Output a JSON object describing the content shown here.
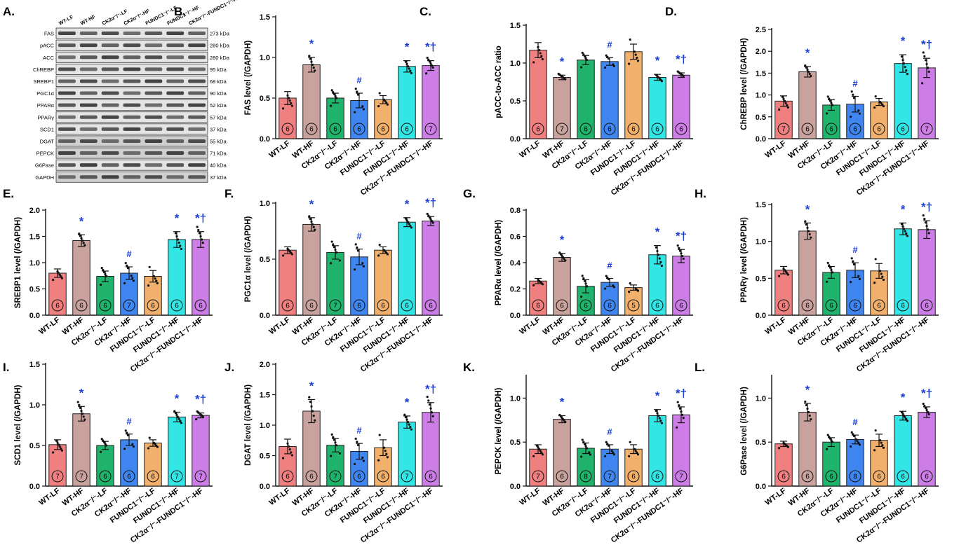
{
  "colors": {
    "groups": [
      "#f08080",
      "#c9a29d",
      "#1fb36b",
      "#3f86f0",
      "#f2b06d",
      "#33e6e6",
      "#cc7de6"
    ],
    "significance": "#1a3ed6"
  },
  "groups": [
    "WT-LF",
    "WT-HF",
    "CK2α⁻/⁻-LF",
    "CK2α⁻/⁻-HF",
    "FUNDC1⁻/⁻-LF",
    "FUNDC1⁻/⁻-HF",
    "CK2α⁻/⁻-FUNDC1⁻/⁻-HF"
  ],
  "blot": {
    "panel_letter": "A.",
    "lanes": [
      "WT-LF",
      "WT-HF",
      "CK2α⁻/⁻-LF",
      "CK2α⁻/⁻-HF",
      "FUNDC1⁻/⁻-LF",
      "FUNDC1⁻/⁻-HF",
      "CK2α⁻/⁻-FUNDC1⁻/⁻-HF"
    ],
    "rows": [
      {
        "protein": "FAS",
        "size": "273 kDa"
      },
      {
        "protein": "pACC",
        "size": "280 kDa"
      },
      {
        "protein": "ACC",
        "size": "280 kDa"
      },
      {
        "protein": "ChREBP",
        "size": "95 kDa"
      },
      {
        "protein": "SREBP1",
        "size": "68 kDa"
      },
      {
        "protein": "PGC1α",
        "size": "90 kDa"
      },
      {
        "protein": "PPARα",
        "size": "52 kDa"
      },
      {
        "protein": "PPARγ",
        "size": "57 kDa"
      },
      {
        "protein": "SCD1",
        "size": "37 kDa"
      },
      {
        "protein": "DGAT",
        "size": "55 kDa"
      },
      {
        "protein": "PEPCK",
        "size": "71 kDa"
      },
      {
        "protein": "G6Pase",
        "size": "40 kDa"
      },
      {
        "protein": "GAPDH",
        "size": "37 kDa"
      }
    ]
  },
  "chart_data": [
    {
      "panel": "B.",
      "type": "bar",
      "ylabel": "FAS level (/GAPDH)",
      "ylim": [
        0,
        1.5
      ],
      "yticks": [
        "0.0",
        "0.5",
        "1.0",
        "1.5"
      ],
      "categories": [
        "WT-LF",
        "WT-HF",
        "CK2α⁻/⁻-LF",
        "CK2α⁻/⁻-HF",
        "FUNDC1⁻/⁻-LF",
        "FUNDC1⁻/⁻-HF",
        "CK2α⁻/⁻-FUNDC1⁻/⁻-HF"
      ],
      "values": [
        0.5,
        0.91,
        0.5,
        0.47,
        0.48,
        0.89,
        0.9
      ],
      "errors": [
        0.08,
        0.09,
        0.06,
        0.09,
        0.05,
        0.07,
        0.06
      ],
      "n": [
        "6",
        "6",
        "6",
        "6",
        "6",
        "6",
        "7"
      ],
      "marks": [
        "",
        "*",
        "",
        "#",
        "",
        "*",
        "*†"
      ]
    },
    {
      "panel": "C.",
      "type": "bar",
      "ylabel": "pACC-to-ACC ratio",
      "ylim": [
        0,
        1.5
      ],
      "yticks": [
        "0.0",
        "0.5",
        "1.0",
        "1.5"
      ],
      "categories": [
        "WT-LF",
        "WT-HF",
        "CK2α⁻/⁻-LF",
        "CK2α⁻/⁻-HF",
        "FUNDC1⁻/⁻-LF",
        "FUNDC1⁻/⁻-HF",
        "CK2α⁻/⁻-FUNDC1⁻/⁻-HF"
      ],
      "values": [
        1.17,
        0.81,
        1.04,
        1.02,
        1.15,
        0.81,
        0.84
      ],
      "errors": [
        0.1,
        0.03,
        0.06,
        0.05,
        0.1,
        0.04,
        0.03
      ],
      "n": [
        "6",
        "7",
        "6",
        "6",
        "6",
        "6",
        "6"
      ],
      "marks": [
        "",
        "*",
        "",
        "#",
        "",
        "*",
        "*†"
      ]
    },
    {
      "panel": "D.",
      "type": "bar",
      "ylabel": "ChREBP level (/GAPDH)",
      "ylim": [
        0,
        2.5
      ],
      "yticks": [
        "0.0",
        "0.5",
        "1.0",
        "1.5",
        "2.0",
        "2.5"
      ],
      "categories": [
        "WT-LF",
        "WT-HF",
        "CK2α⁻/⁻-LF",
        "CK2α⁻/⁻-HF",
        "FUNDC1⁻/⁻-LF",
        "FUNDC1⁻/⁻-HF",
        "CK2α⁻/⁻-FUNDC1⁻/⁻-HF"
      ],
      "values": [
        0.86,
        1.53,
        0.77,
        0.79,
        0.84,
        1.72,
        1.62
      ],
      "errors": [
        0.12,
        0.12,
        0.12,
        0.18,
        0.08,
        0.2,
        0.22
      ],
      "n": [
        "7",
        "6",
        "6",
        "6",
        "6",
        "6",
        "7"
      ],
      "marks": [
        "",
        "*",
        "",
        "#",
        "",
        "*",
        "*†"
      ]
    },
    {
      "panel": "E.",
      "type": "bar",
      "ylabel": "SREBP1 level (/GAPDH)",
      "ylim": [
        0,
        2.0
      ],
      "yticks": [
        "0.0",
        "0.5",
        "1.0",
        "1.5",
        "2.0"
      ],
      "categories": [
        "WT-LF",
        "WT-HF",
        "CK2α⁻/⁻-LF",
        "CK2α⁻/⁻-HF",
        "FUNDC1⁻/⁻-LF",
        "FUNDC1⁻/⁻-HF",
        "CK2α⁻/⁻-FUNDC1⁻/⁻-HF"
      ],
      "values": [
        0.8,
        1.42,
        0.74,
        0.8,
        0.74,
        1.44,
        1.44
      ],
      "errors": [
        0.08,
        0.11,
        0.1,
        0.12,
        0.11,
        0.15,
        0.15
      ],
      "n": [
        "6",
        "6",
        "6",
        "7",
        "6",
        "6",
        "6"
      ],
      "marks": [
        "",
        "*",
        "",
        "#",
        "",
        "*",
        "*†"
      ]
    },
    {
      "panel": "F.",
      "type": "bar",
      "ylabel": "PGC1α level (/GAPDH)",
      "ylim": [
        0,
        1.0
      ],
      "yticks": [
        "0.0",
        "0.5",
        "1.0"
      ],
      "categories": [
        "WT-LF",
        "WT-HF",
        "CK2α⁻/⁻-LF",
        "CK2α⁻/⁻-HF",
        "FUNDC1⁻/⁻-LF",
        "FUNDC1⁻/⁻-HF",
        "CK2α⁻/⁻-FUNDC1⁻/⁻-HF"
      ],
      "values": [
        0.58,
        0.81,
        0.56,
        0.52,
        0.58,
        0.83,
        0.84
      ],
      "errors": [
        0.03,
        0.06,
        0.06,
        0.07,
        0.03,
        0.04,
        0.04
      ],
      "n": [
        "6",
        "6",
        "7",
        "6",
        "6",
        "6",
        "6"
      ],
      "marks": [
        "",
        "*",
        "",
        "#",
        "",
        "*",
        "*†"
      ]
    },
    {
      "panel": "G.",
      "type": "bar",
      "ylabel": "PPARα level (/GAPDH)",
      "ylim": [
        0,
        0.8
      ],
      "yticks": [
        "0.0",
        "0.2",
        "0.4",
        "0.6",
        "0.8"
      ],
      "categories": [
        "WT-LF",
        "WT-HF",
        "CK2α⁻/⁻-LF",
        "CK2α⁻/⁻-HF",
        "FUNDC1⁻/⁻-LF",
        "FUNDC1⁻/⁻-HF",
        "CK2α⁻/⁻-FUNDC1⁻/⁻-HF"
      ],
      "values": [
        0.26,
        0.44,
        0.22,
        0.25,
        0.21,
        0.46,
        0.45
      ],
      "errors": [
        0.02,
        0.03,
        0.05,
        0.03,
        0.02,
        0.07,
        0.05
      ],
      "n": [
        "6",
        "6",
        "6",
        "6",
        "5",
        "6",
        "6"
      ],
      "marks": [
        "",
        "*",
        "",
        "#",
        "",
        "*",
        "*†"
      ]
    },
    {
      "panel": "H.",
      "type": "bar",
      "ylabel": "PPARγ level (/GAPDH)",
      "ylim": [
        0,
        1.5
      ],
      "yticks": [
        "0.0",
        "0.5",
        "1.0",
        "1.5"
      ],
      "categories": [
        "WT-LF",
        "WT-HF",
        "CK2α⁻/⁻-LF",
        "CK2α⁻/⁻-HF",
        "FUNDC1⁻/⁻-LF",
        "FUNDC1⁻/⁻-HF",
        "CK2α⁻/⁻-FUNDC1⁻/⁻-HF"
      ],
      "values": [
        0.61,
        1.14,
        0.58,
        0.61,
        0.6,
        1.17,
        1.16
      ],
      "errors": [
        0.05,
        0.11,
        0.08,
        0.1,
        0.1,
        0.08,
        0.12
      ],
      "n": [
        "6",
        "6",
        "6",
        "6",
        "6",
        "6",
        "6"
      ],
      "marks": [
        "",
        "*",
        "",
        "#",
        "",
        "*",
        "*†"
      ]
    },
    {
      "panel": "I.",
      "type": "bar",
      "ylabel": "SCD1 level (/GAPDH)",
      "ylim": [
        0,
        1.5
      ],
      "yticks": [
        "0.0",
        "0.5",
        "1.0",
        "1.5"
      ],
      "categories": [
        "WT-LF",
        "WT-HF",
        "CK2α⁻/⁻-LF",
        "CK2α⁻/⁻-HF",
        "FUNDC1⁻/⁻-LF",
        "FUNDC1⁻/⁻-HF",
        "CK2α⁻/⁻-FUNDC1⁻/⁻-HF"
      ],
      "values": [
        0.51,
        0.89,
        0.5,
        0.57,
        0.53,
        0.85,
        0.87
      ],
      "errors": [
        0.06,
        0.09,
        0.05,
        0.07,
        0.04,
        0.06,
        0.03
      ],
      "n": [
        "7",
        "7",
        "6",
        "6",
        "6",
        "7",
        "7"
      ],
      "marks": [
        "",
        "*",
        "",
        "#",
        "",
        "*",
        "*†"
      ]
    },
    {
      "panel": "J.",
      "type": "bar",
      "ylabel": "DGAT level (/GAPDH)",
      "ylim": [
        0,
        2.0
      ],
      "yticks": [
        "0.0",
        "0.5",
        "1.0",
        "1.5",
        "2.0"
      ],
      "categories": [
        "WT-LF",
        "WT-HF",
        "CK2α⁻/⁻-LF",
        "CK2α⁻/⁻-HF",
        "FUNDC1⁻/⁻-LF",
        "FUNDC1⁻/⁻-HF",
        "CK2α⁻/⁻-FUNDC1⁻/⁻-HF"
      ],
      "values": [
        0.65,
        1.23,
        0.67,
        0.57,
        0.63,
        1.05,
        1.21
      ],
      "errors": [
        0.12,
        0.19,
        0.11,
        0.13,
        0.13,
        0.1,
        0.16
      ],
      "n": [
        "6",
        "6",
        "7",
        "6",
        "6",
        "7",
        "6"
      ],
      "marks": [
        "",
        "*",
        "",
        "#",
        "",
        "*",
        "*†"
      ]
    },
    {
      "panel": "K.",
      "type": "bar",
      "ylabel": "PEPCK level (/GAPDH)",
      "ylim": [
        0,
        1.25
      ],
      "yticks": [
        "0.0",
        "0.5",
        "1.0"
      ],
      "categories": [
        "WT-LF",
        "WT-HF",
        "CK2α⁻/⁻-LF",
        "CK2α⁻/⁻-HF",
        "FUNDC1⁻/⁻-LF",
        "FUNDC1⁻/⁻-HF",
        "CK2α⁻/⁻-FUNDC1⁻/⁻-HF"
      ],
      "values": [
        0.42,
        0.76,
        0.43,
        0.42,
        0.42,
        0.8,
        0.81
      ],
      "errors": [
        0.05,
        0.04,
        0.06,
        0.05,
        0.05,
        0.07,
        0.09
      ],
      "n": [
        "7",
        "6",
        "8",
        "7",
        "6",
        "6",
        "7"
      ],
      "marks": [
        "",
        "*",
        "",
        "#",
        "",
        "*",
        "*†"
      ]
    },
    {
      "panel": "L.",
      "type": "bar",
      "ylabel": "G6Pase level (/GAPDH)",
      "ylim": [
        0,
        1.25
      ],
      "yticks": [
        "0.0",
        "0.5",
        "1.0"
      ],
      "categories": [
        "WT-LF",
        "WT-HF",
        "CK2α⁻/⁻-LF",
        "CK2α⁻/⁻-HF",
        "FUNDC1⁻/⁻-LF",
        "FUNDC1⁻/⁻-HF",
        "CK2α⁻/⁻-FUNDC1⁻/⁻-HF"
      ],
      "values": [
        0.48,
        0.84,
        0.5,
        0.53,
        0.52,
        0.8,
        0.84
      ],
      "errors": [
        0.03,
        0.1,
        0.05,
        0.05,
        0.07,
        0.05,
        0.06
      ],
      "n": [
        "6",
        "6",
        "6",
        "8",
        "6",
        "6",
        "6"
      ],
      "marks": [
        "",
        "*",
        "",
        "#",
        "",
        "*",
        "*†"
      ]
    }
  ]
}
